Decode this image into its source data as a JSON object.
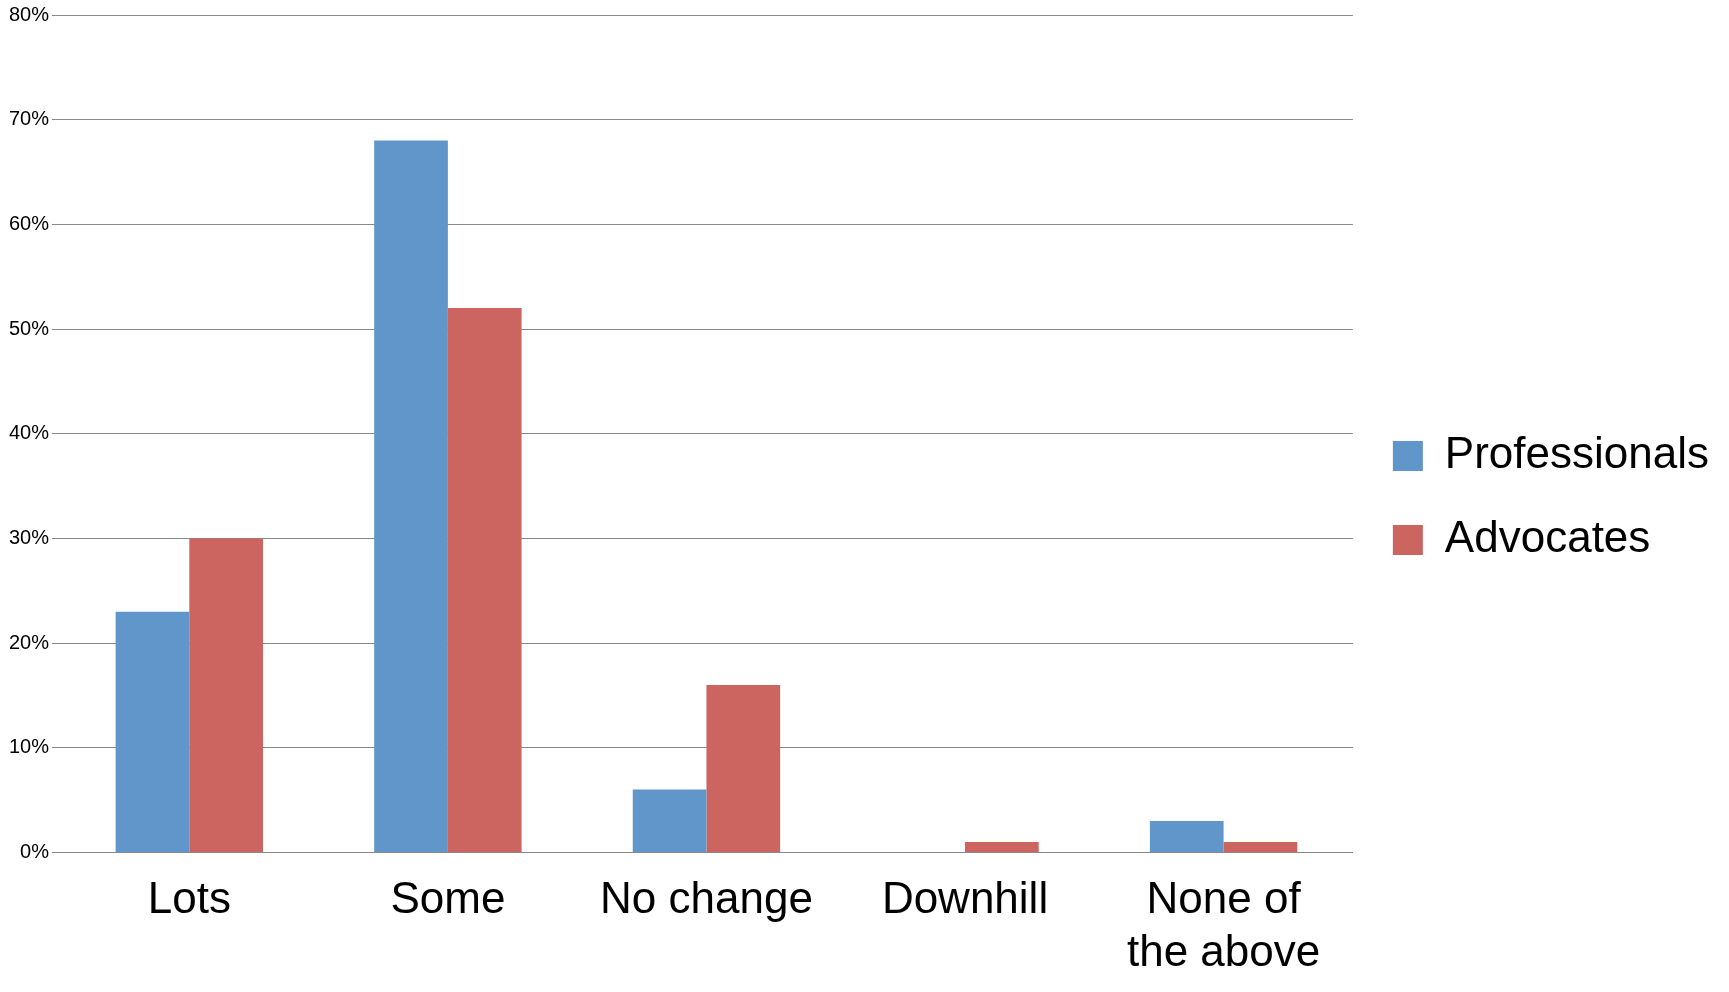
{
  "chart_data": {
    "type": "bar",
    "categories": [
      "Lots",
      "Some",
      "No change",
      "Downhill",
      "None of the above"
    ],
    "series": [
      {
        "name": "Professionals",
        "color": "#6196cb",
        "values": [
          23,
          68,
          6,
          0,
          3
        ]
      },
      {
        "name": "Advocates",
        "color": "#cc6460",
        "values": [
          30,
          52,
          16,
          1,
          1
        ]
      }
    ],
    "ylim": [
      0,
      80
    ],
    "yticks": [
      {
        "value": 0,
        "label": "0%"
      },
      {
        "value": 10,
        "label": "10%"
      },
      {
        "value": 20,
        "label": "20%"
      },
      {
        "value": 30,
        "label": "30%"
      },
      {
        "value": 40,
        "label": "40%"
      },
      {
        "value": 50,
        "label": "50%"
      },
      {
        "value": 60,
        "label": "60%"
      },
      {
        "value": 70,
        "label": "70%"
      },
      {
        "value": 80,
        "label": "80%"
      }
    ],
    "grid": "y",
    "legend": "right"
  }
}
